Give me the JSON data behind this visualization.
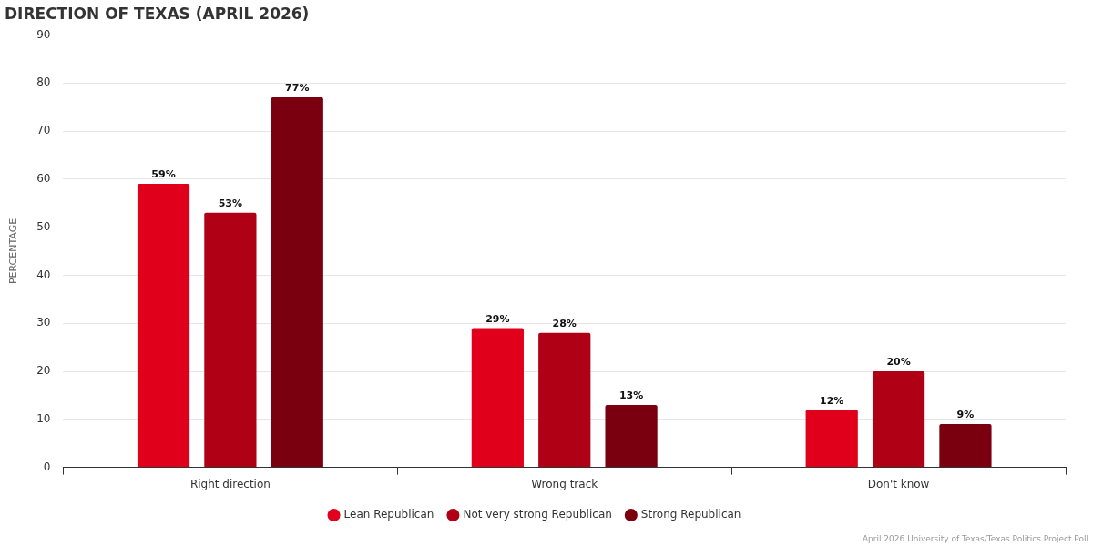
{
  "chart_data": {
    "type": "bar",
    "title": "DIRECTION OF TEXAS (APRIL 2026)",
    "ylabel": "PERCENTAGE",
    "categories": [
      "Right direction",
      "Wrong track",
      "Don't know"
    ],
    "series": [
      {
        "name": "Lean Republican",
        "color": "#e0001b",
        "values": [
          59,
          29,
          12
        ],
        "value_labels": [
          "59%",
          "29%",
          "12%"
        ]
      },
      {
        "name": "Not very strong Republican",
        "color": "#b00016",
        "values": [
          53,
          28,
          20
        ],
        "value_labels": [
          "53%",
          "28%",
          "20%"
        ]
      },
      {
        "name": "Strong Republican",
        "color": "#7a0010",
        "values": [
          77,
          13,
          9
        ],
        "value_labels": [
          "77%",
          "13%",
          "9%"
        ]
      }
    ],
    "ylim": [
      0,
      90
    ],
    "yticks": [
      0,
      10,
      20,
      30,
      40,
      50,
      60,
      70,
      80,
      90
    ],
    "grid": "y",
    "legend": "bottom",
    "marker": "circle",
    "annotations": [
      "April 2026 University of Texas/Texas Politics Project Poll"
    ]
  }
}
